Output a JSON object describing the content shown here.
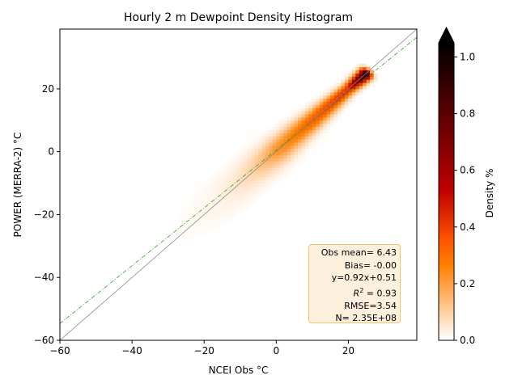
{
  "chart_data": {
    "type": "heatmap",
    "title": "Hourly 2 m Dewpoint Density Histogram",
    "xlabel": "NCEI Obs °C",
    "ylabel": "POWER (MERRA-2) °C",
    "xlim": [
      -60,
      39
    ],
    "ylim": [
      -60,
      39
    ],
    "xticks": [
      -60,
      -40,
      -20,
      0,
      20
    ],
    "yticks": [
      -60,
      -40,
      -20,
      0,
      20
    ],
    "xtick_labels": [
      "−60",
      "−40",
      "−20",
      "0",
      "20"
    ],
    "ytick_labels": [
      "−60",
      "−40",
      "−20",
      "0",
      "20"
    ],
    "colorbar": {
      "label": "Density %",
      "range": [
        0.0,
        1.05
      ],
      "extend": "max",
      "ticks": [
        0.0,
        0.2,
        0.4,
        0.6,
        0.8,
        1.0
      ],
      "tick_labels": [
        "0.0",
        "0.2",
        "0.4",
        "0.6",
        "0.8",
        "1.0"
      ],
      "colormap": "gist_heat_r"
    },
    "one_to_one_line": {
      "color": "#888888",
      "style": "solid"
    },
    "fit_line": {
      "slope": 0.92,
      "intercept": 0.51,
      "color": "#2ca02c",
      "style": "dashdot"
    },
    "density_peak": {
      "x": 25,
      "y": 24,
      "value": 1.0
    },
    "grid": false
  },
  "stats": {
    "obs_mean": "Obs mean= 6.43",
    "bias": "Bias= -0.00",
    "equation": "y=0.92x+0.51",
    "r2_value": " = 0.93",
    "rmse": "RMSE=3.54",
    "n": "N= 2.35E+08"
  }
}
